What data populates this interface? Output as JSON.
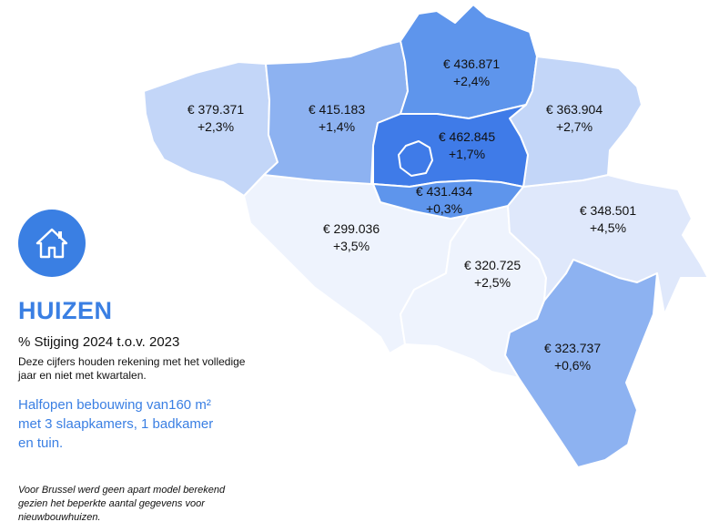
{
  "colors": {
    "accent": "#3a7fe3",
    "dark": "#3f7be8",
    "medium_dark": "#5e95ec",
    "medium": "#8db2f1",
    "light": "#c3d6f8",
    "lighter": "#dfe8fb",
    "lightest": "#eef3fd",
    "border": "#ffffff"
  },
  "icon": "house-icon",
  "title": "HUIZEN",
  "subtitle": "% Stijging 2024 t.o.v. 2023",
  "note": "Deze cijfers houden rekening met het volledige jaar en niet met kwartalen.",
  "spec_lines": [
    "Halfopen bebouwing van160 m²",
    "met 3 slaapkamers, 1 badkamer",
    "en tuin."
  ],
  "footnote": "Voor Brussel werd geen apart model berekend gezien het beperkte aantal gegevens voor nieuwbouwhuizen.",
  "provinces": [
    {
      "id": "west-vlaanderen",
      "price": "€ 379.371",
      "change": "+2,3%",
      "shade": "light"
    },
    {
      "id": "oost-vlaanderen",
      "price": "€ 415.183",
      "change": "+1,4%",
      "shade": "medium"
    },
    {
      "id": "antwerpen",
      "price": "€ 436.871",
      "change": "+2,4%",
      "shade": "medium_dark"
    },
    {
      "id": "limburg",
      "price": "€ 363.904",
      "change": "+2,7%",
      "shade": "light"
    },
    {
      "id": "vlaams-brabant",
      "price": "€ 462.845",
      "change": "+1,7%",
      "shade": "dark"
    },
    {
      "id": "waals-brabant",
      "price": "€ 431.434",
      "change": "+0,3%",
      "shade": "medium_dark"
    },
    {
      "id": "henegouwen",
      "price": "€ 299.036",
      "change": "+3,5%",
      "shade": "lightest"
    },
    {
      "id": "namen",
      "price": "€ 320.725",
      "change": "+2,5%",
      "shade": "lightest"
    },
    {
      "id": "luik",
      "price": "€ 348.501",
      "change": "+4,5%",
      "shade": "lighter"
    },
    {
      "id": "luxemburg",
      "price": "€ 323.737",
      "change": "+0,6%",
      "shade": "medium"
    },
    {
      "id": "brussel",
      "price": "",
      "change": "",
      "shade": "dark"
    }
  ]
}
